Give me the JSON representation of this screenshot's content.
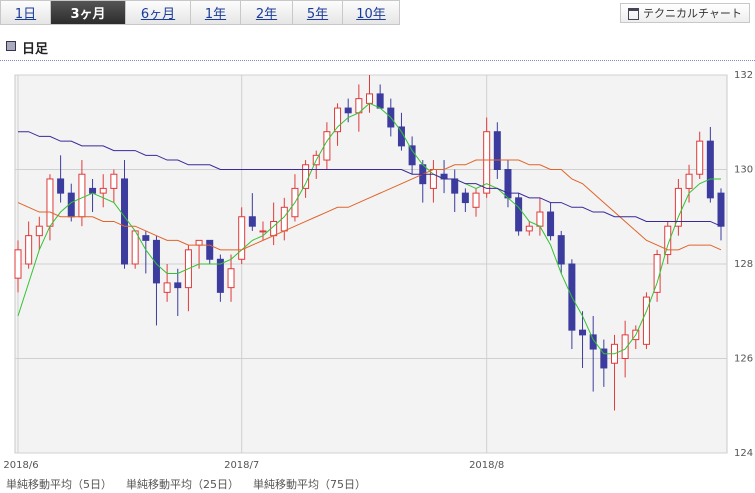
{
  "tabs": [
    "1日",
    "3ヶ月",
    "6ヶ月",
    "1年",
    "2年",
    "5年",
    "10年"
  ],
  "selected_tab": 1,
  "technical_button": "テクニカルチャート",
  "section_title": "日足",
  "chart_data": {
    "type": "candlestick",
    "categories": [
      "2018/6",
      null,
      null,
      null,
      null,
      null,
      null,
      null,
      null,
      null,
      null,
      null,
      null,
      null,
      null,
      null,
      null,
      null,
      null,
      null,
      null,
      "2018/7",
      null,
      null,
      null,
      null,
      null,
      null,
      null,
      null,
      null,
      null,
      null,
      null,
      null,
      null,
      null,
      null,
      null,
      null,
      null,
      null,
      null,
      null,
      "2018/8",
      null,
      null,
      null,
      null,
      null,
      null,
      null,
      null,
      null,
      null,
      null,
      null,
      null,
      null,
      null,
      null,
      null,
      null,
      null,
      null,
      null,
      null
    ],
    "open": [
      127.7,
      128.0,
      128.6,
      128.8,
      129.8,
      129.5,
      129.0,
      129.6,
      129.5,
      129.6,
      129.8,
      128.0,
      128.6,
      128.5,
      127.4,
      127.6,
      127.5,
      128.4,
      128.5,
      128.1,
      127.5,
      128.1,
      129.0,
      128.7,
      128.6,
      128.7,
      129.0,
      129.6,
      130.1,
      130.2,
      130.8,
      131.3,
      131.2,
      131.4,
      131.6,
      131.3,
      130.9,
      130.5,
      130.1,
      129.6,
      129.9,
      129.8,
      129.5,
      129.2,
      129.5,
      130.8,
      130.0,
      129.4,
      128.7,
      128.8,
      129.1,
      128.6,
      128.0,
      126.6,
      126.5,
      126.2,
      125.9,
      126.0,
      126.4,
      126.3,
      127.4,
      128.2,
      128.8,
      129.6,
      129.9,
      130.6,
      129.5
    ],
    "high": [
      128.5,
      128.9,
      129.0,
      129.9,
      130.3,
      129.7,
      130.2,
      129.8,
      129.9,
      130.0,
      130.2,
      128.7,
      128.7,
      128.6,
      128.0,
      127.9,
      128.4,
      128.5,
      128.5,
      128.2,
      128.2,
      129.2,
      129.5,
      128.9,
      129.3,
      129.4,
      129.9,
      130.2,
      130.4,
      131.0,
      131.4,
      131.5,
      131.8,
      132.0,
      131.8,
      131.5,
      131.2,
      130.7,
      130.2,
      130.2,
      130.2,
      130.0,
      129.6,
      129.6,
      131.1,
      131.0,
      130.2,
      129.5,
      128.9,
      129.4,
      129.3,
      128.7,
      128.1,
      127.0,
      126.9,
      126.4,
      126.5,
      126.8,
      126.7,
      127.4,
      128.3,
      128.9,
      129.8,
      130.1,
      130.8,
      130.9,
      129.6
    ],
    "low": [
      127.4,
      127.9,
      128.3,
      128.5,
      129.3,
      128.9,
      128.8,
      129.1,
      129.2,
      129.3,
      127.9,
      127.9,
      127.8,
      126.7,
      127.2,
      126.9,
      127.0,
      127.9,
      128.0,
      127.2,
      127.2,
      128.0,
      128.7,
      128.5,
      128.4,
      128.5,
      128.9,
      129.4,
      129.8,
      130.0,
      130.5,
      131.0,
      130.8,
      131.2,
      131.3,
      130.7,
      130.4,
      129.9,
      129.3,
      129.3,
      129.5,
      129.1,
      129.1,
      129.0,
      129.4,
      129.8,
      129.2,
      128.6,
      128.6,
      128.6,
      128.5,
      127.8,
      126.2,
      125.8,
      125.3,
      125.4,
      124.9,
      125.6,
      126.2,
      126.2,
      127.2,
      128.0,
      128.6,
      129.3,
      129.8,
      129.3,
      128.5
    ],
    "close": [
      128.3,
      128.6,
      128.8,
      129.8,
      129.5,
      129.0,
      129.9,
      129.5,
      129.6,
      129.9,
      128.0,
      128.7,
      128.5,
      127.6,
      127.6,
      127.5,
      128.3,
      128.5,
      128.1,
      127.4,
      127.9,
      129.0,
      128.8,
      128.7,
      128.9,
      129.2,
      129.6,
      130.1,
      130.3,
      130.8,
      131.3,
      131.2,
      131.5,
      131.6,
      131.3,
      130.9,
      130.5,
      130.1,
      129.7,
      130.0,
      129.8,
      129.5,
      129.3,
      129.5,
      130.8,
      130.0,
      129.4,
      128.7,
      128.8,
      129.1,
      128.6,
      128.0,
      126.6,
      126.5,
      126.2,
      125.8,
      126.3,
      126.5,
      126.6,
      127.3,
      128.2,
      128.8,
      129.6,
      129.9,
      130.6,
      129.4,
      128.8
    ],
    "up_color": "#e03a3a",
    "down_color": "#3c3c9e",
    "series": [
      {
        "name": "単純移動平均（5日）",
        "color": "#33c233",
        "values": [
          126.9,
          127.6,
          128.3,
          128.8,
          129.1,
          129.3,
          129.4,
          129.5,
          129.4,
          129.3,
          129.0,
          128.7,
          128.3,
          128.0,
          127.8,
          127.8,
          127.9,
          128.0,
          128.0,
          128.0,
          128.1,
          128.3,
          128.5,
          128.6,
          128.8,
          129.0,
          129.3,
          129.7,
          130.2,
          130.6,
          130.9,
          131.1,
          131.2,
          131.4,
          131.3,
          131.1,
          130.8,
          130.4,
          130.1,
          129.9,
          129.8,
          129.8,
          129.7,
          129.6,
          129.7,
          129.6,
          129.4,
          129.2,
          128.9,
          128.8,
          128.4,
          127.8,
          127.3,
          126.9,
          126.4,
          126.1,
          126.1,
          126.2,
          126.5,
          127.0,
          127.6,
          128.4,
          129.0,
          129.5,
          129.7,
          129.8,
          129.8
        ]
      },
      {
        "name": "単純移動平均（25日）",
        "color": "#e0642a",
        "values": [
          129.3,
          129.2,
          129.1,
          129.1,
          129.0,
          129.0,
          129.0,
          129.0,
          128.9,
          128.9,
          128.8,
          128.8,
          128.7,
          128.6,
          128.5,
          128.5,
          128.4,
          128.4,
          128.4,
          128.3,
          128.3,
          128.3,
          128.4,
          128.5,
          128.6,
          128.7,
          128.8,
          128.9,
          129.0,
          129.1,
          129.2,
          129.2,
          129.3,
          129.4,
          129.5,
          129.6,
          129.7,
          129.8,
          129.9,
          130.0,
          130.0,
          130.1,
          130.1,
          130.2,
          130.2,
          130.2,
          130.2,
          130.2,
          130.1,
          130.1,
          130.0,
          130.0,
          129.8,
          129.7,
          129.5,
          129.3,
          129.1,
          128.9,
          128.7,
          128.5,
          128.4,
          128.3,
          128.3,
          128.4,
          128.4,
          128.4,
          128.3
        ]
      },
      {
        "name": "単純移動平均（75日）",
        "color": "#3a2a9a",
        "values": [
          130.8,
          130.8,
          130.7,
          130.7,
          130.6,
          130.6,
          130.5,
          130.5,
          130.5,
          130.4,
          130.4,
          130.4,
          130.3,
          130.3,
          130.2,
          130.2,
          130.1,
          130.1,
          130.1,
          130.0,
          130.0,
          130.0,
          130.0,
          130.0,
          130.0,
          130.0,
          130.0,
          130.0,
          130.0,
          130.0,
          130.0,
          130.0,
          130.0,
          130.0,
          130.0,
          130.0,
          130.0,
          129.9,
          129.9,
          129.9,
          129.8,
          129.8,
          129.7,
          129.7,
          129.6,
          129.6,
          129.5,
          129.5,
          129.4,
          129.4,
          129.3,
          129.3,
          129.2,
          129.2,
          129.1,
          129.1,
          129.0,
          129.0,
          129.0,
          128.9,
          128.9,
          128.9,
          128.9,
          128.9,
          128.9,
          128.9,
          128.8
        ]
      }
    ],
    "ylim": [
      124,
      132
    ],
    "yticks": [
      124,
      126,
      128,
      130,
      132
    ],
    "grid": true
  }
}
